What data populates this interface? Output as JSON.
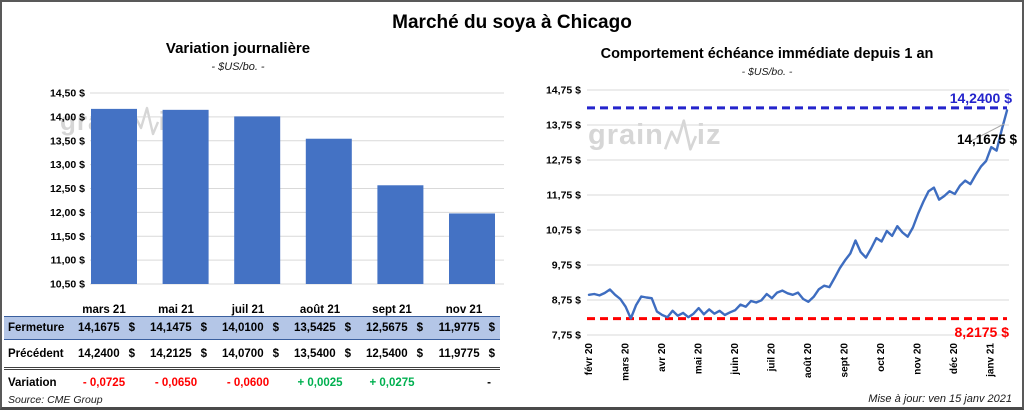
{
  "page": {
    "title": "Marché du soya à Chicago",
    "source": "Source: CME Group",
    "updated": "Mise à jour: ven 15 janv 2021"
  },
  "watermark": {
    "left": "grain",
    "right": "iz"
  },
  "colors": {
    "bar_blue": "#4472C4",
    "line_blue": "#3E6DC0",
    "dashed_blue": "#2424CC",
    "dashed_red": "#FF0000",
    "negative_red": "#FF0000",
    "positive_green": "#00B050",
    "fermeture_bg": "#B4C6E7",
    "fermeture_text": "#1F3864",
    "grid_gray": "#D9D9D9",
    "watermark_gray": "#D6D6D6"
  },
  "chart_data": [
    {
      "type": "bar",
      "title": "Variation journalière",
      "subtitle": "- $US/bo. -",
      "categories": [
        "mars 21",
        "mai 21",
        "juil 21",
        "août 21",
        "sept 21",
        "nov 21"
      ],
      "values": [
        14.1675,
        14.1475,
        14.01,
        13.5425,
        12.5675,
        11.9775
      ],
      "ylim": [
        10.5,
        14.5
      ],
      "ytick_step": 0.5,
      "ytick_labels": [
        "14,50 $",
        "14,00 $",
        "13,50 $",
        "13,00 $",
        "12,50 $",
        "12,00 $",
        "11,50 $",
        "11,00 $",
        "10,50 $"
      ],
      "bar_color": "#4472C4",
      "grid": true,
      "legend": "none"
    },
    {
      "type": "line",
      "title": "Comportement échéance immédiate depuis 1 an",
      "subtitle": "- $US/bo. -",
      "x_tick_labels": [
        "févr 20",
        "mars 20",
        "avr 20",
        "mai 20",
        "juin 20",
        "juil 20",
        "août 20",
        "sept 20",
        "oct 20",
        "nov 20",
        "déc 20",
        "janv 21"
      ],
      "ylim": [
        7.75,
        14.75
      ],
      "ytick_step": 1.0,
      "ytick_labels": [
        "14,75 $",
        "13,75 $",
        "12,75 $",
        "11,75 $",
        "10,75 $",
        "9,75 $",
        "8,75 $",
        "7,75 $"
      ],
      "line_color": "#3E6DC0",
      "grid": true,
      "legend": "none",
      "series": [
        {
          "name": "Échéance immédiate",
          "values": [
            8.9,
            8.92,
            8.88,
            8.95,
            9.05,
            8.9,
            8.78,
            8.56,
            8.22,
            8.6,
            8.85,
            8.82,
            8.8,
            8.42,
            8.32,
            8.26,
            8.44,
            8.3,
            8.38,
            8.26,
            8.36,
            8.52,
            8.34,
            8.48,
            8.36,
            8.44,
            8.32,
            8.4,
            8.46,
            8.62,
            8.56,
            8.72,
            8.68,
            8.74,
            8.92,
            8.8,
            8.96,
            9.02,
            8.94,
            8.9,
            8.96,
            8.78,
            8.7,
            8.84,
            9.06,
            9.16,
            9.12,
            9.38,
            9.66,
            9.88,
            10.08,
            10.45,
            10.12,
            9.96,
            10.22,
            10.52,
            10.42,
            10.72,
            10.58,
            10.86,
            10.68,
            10.56,
            10.82,
            11.22,
            11.56,
            11.86,
            11.96,
            11.62,
            11.72,
            11.86,
            11.78,
            12.02,
            12.16,
            12.06,
            12.32,
            12.56,
            12.72,
            13.12,
            13.02,
            13.62,
            14.1675
          ]
        }
      ],
      "ref_lines": [
        {
          "value": 14.24,
          "label": "14,2400 $",
          "color": "#2424CC",
          "style": "dashed",
          "position": "top-right"
        },
        {
          "value": 8.2175,
          "label": "8,2175 $",
          "color": "#FF0000",
          "style": "dashed",
          "position": "bottom-right"
        }
      ],
      "annotations": [
        {
          "label": "14,1675 $",
          "value": 14.1675,
          "color": "#000000"
        }
      ]
    }
  ],
  "table": {
    "columns": [
      "mars 21",
      "mai 21",
      "juil 21",
      "août 21",
      "sept 21",
      "nov 21"
    ],
    "rows": [
      {
        "id": "fermeture",
        "label": "Fermeture",
        "values": [
          "14,1675",
          "14,1475",
          "14,0100",
          "13,5425",
          "12,5675",
          "11,9775"
        ],
        "currency": "$"
      },
      {
        "id": "precedent",
        "label": "Précédent",
        "values": [
          "14,2400",
          "14,2125",
          "14,0700",
          "13,5400",
          "12,5400",
          "11,9775"
        ],
        "currency": "$"
      },
      {
        "id": "variation",
        "label": "Variation",
        "values": [
          "- 0,0725",
          "- 0,0650",
          "- 0,0600",
          "+ 0,0025",
          "+ 0,0275",
          "-"
        ],
        "colors": [
          "#FF0000",
          "#FF0000",
          "#FF0000",
          "#00B050",
          "#00B050",
          "#000000"
        ]
      }
    ]
  }
}
